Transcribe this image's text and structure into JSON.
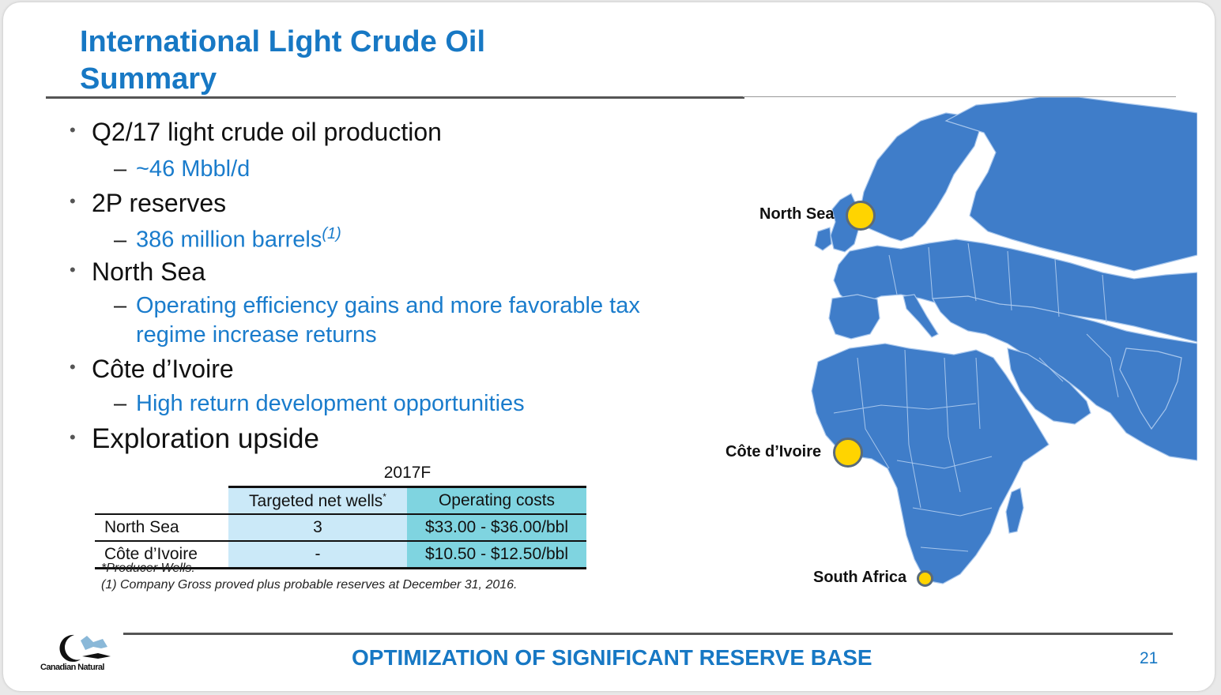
{
  "title_lines": [
    "International Light Crude Oil",
    "Summary"
  ],
  "bullets": [
    {
      "text": "Q2/17 light crude oil production",
      "sub": "~46 Mbbl/d"
    },
    {
      "text": "2P reserves",
      "sub": "386 million barrels",
      "sub_note": "(1)"
    },
    {
      "text": "North Sea",
      "sub_lines": [
        "Operating efficiency gains and more favorable tax",
        "regime increase returns"
      ]
    },
    {
      "text": "Côte d’Ivoire",
      "sub": "High return development opportunities"
    },
    {
      "text": "Exploration upside"
    }
  ],
  "table": {
    "year": "2017F",
    "col_wells": "Targeted net wells",
    "col_wells_mark": "*",
    "col_costs": "Operating costs",
    "rows": [
      {
        "label": "North Sea",
        "wells": "3",
        "costs": "$33.00 - $36.00/bbl"
      },
      {
        "label": "Côte d’Ivoire",
        "wells": "-",
        "costs": "$10.50 - $12.50/bbl"
      }
    ]
  },
  "notes": [
    "*Producer Wells.",
    "(1) Company Gross proved plus probable reserves at December 31, 2016."
  ],
  "map": {
    "land_color": "#3f7dc9",
    "marker_color": "#ffd400",
    "labels": [
      "North Sea",
      "Côte d’Ivoire",
      "South Africa"
    ]
  },
  "footer": {
    "title": "OPTIMIZATION OF SIGNIFICANT RESERVE BASE",
    "page": "21",
    "logo_text": "Canadian Natural"
  },
  "colors": {
    "accent": "#1778c4",
    "table_wells_bg": "#cbe9f8",
    "table_costs_bg": "#7fd4e0"
  }
}
